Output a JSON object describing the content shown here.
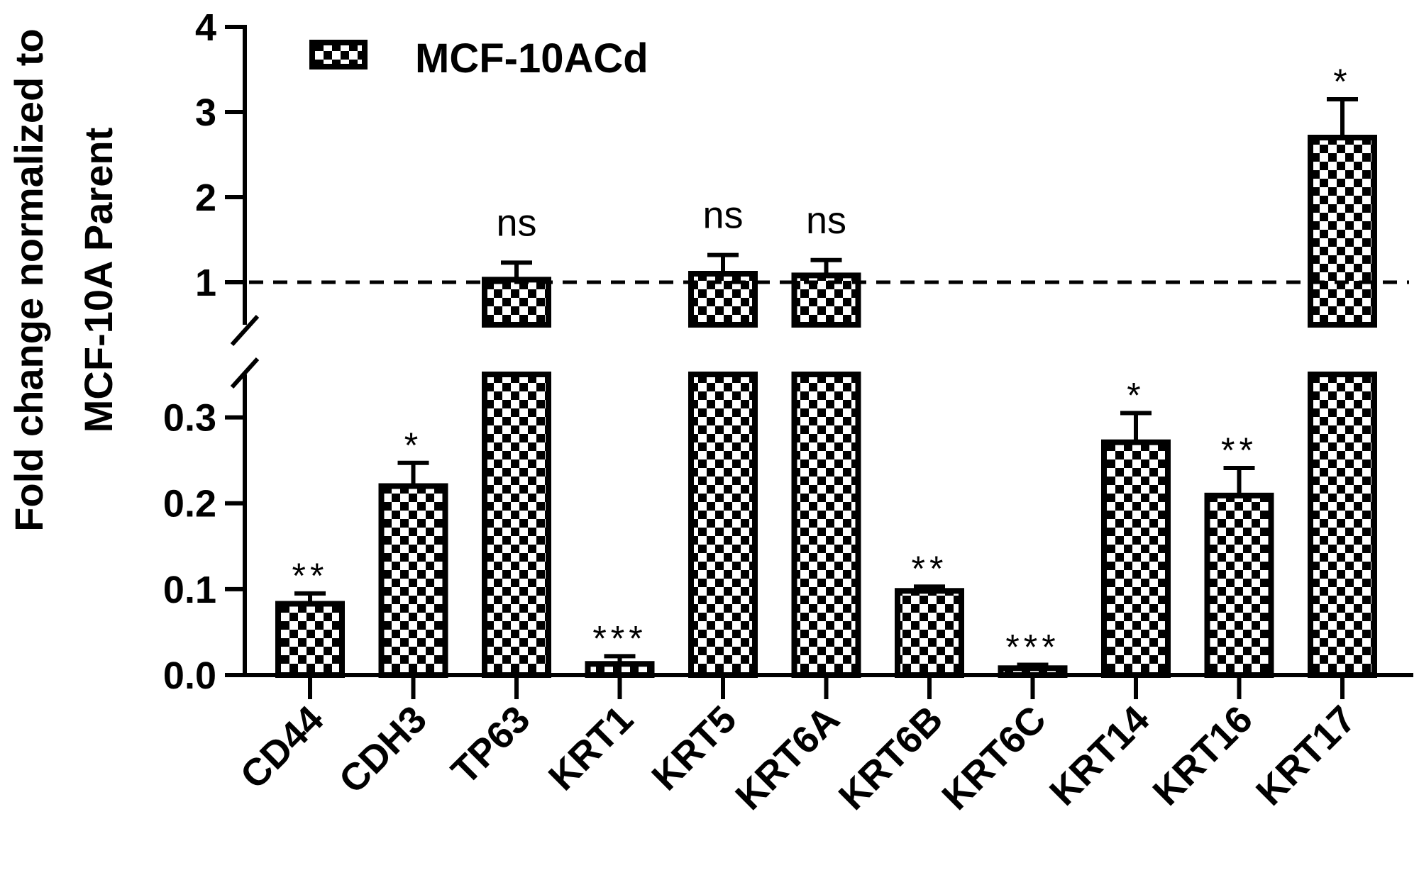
{
  "chart_data": {
    "type": "bar",
    "ylabel_line1": "Fold change normalized to",
    "ylabel_line2": "MCF-10A Parent",
    "legend": {
      "label": "MCF-10ACd",
      "placement": "top-left"
    },
    "y_axis": {
      "broken": true,
      "lower_segment": {
        "range": [
          0,
          0.35
        ],
        "ticks": [
          "0.0",
          "0.1",
          "0.2",
          "0.3"
        ]
      },
      "upper_segment": {
        "range": [
          0.5,
          4
        ],
        "ticks": [
          "1",
          "2",
          "3",
          "4"
        ]
      }
    },
    "reference_line": {
      "y": 1,
      "style": "dashed"
    },
    "categories": [
      "CD44",
      "CDH3",
      "TP63",
      "KRT1",
      "KRT5",
      "KRT6A",
      "KRT6B",
      "KRT6C",
      "KRT14",
      "KRT16",
      "KRT17"
    ],
    "series": [
      {
        "name": "MCF-10ACd",
        "values": [
          0.083,
          0.22,
          1.03,
          0.013,
          1.1,
          1.08,
          0.098,
          0.008,
          0.271,
          0.209,
          2.7
        ],
        "errors": [
          0.012,
          0.027,
          0.2,
          0.009,
          0.22,
          0.18,
          0.005,
          0.004,
          0.034,
          0.032,
          0.45
        ]
      }
    ],
    "significance": [
      "**",
      "*",
      "ns",
      "***",
      "ns",
      "ns",
      "**",
      "***",
      "*",
      "**",
      "*"
    ]
  }
}
